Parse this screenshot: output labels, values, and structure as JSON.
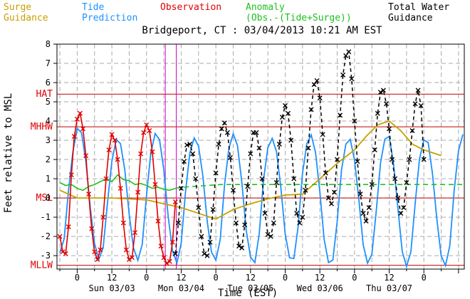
{
  "legend": {
    "surge": {
      "line1": "Surge",
      "line2": "Guidance",
      "color": "#c8a000"
    },
    "tide": {
      "line1": "Tide",
      "line2": "Prediction",
      "color": "#1e90ff"
    },
    "observation": {
      "line1": "Observation",
      "color": "#e00000"
    },
    "anomaly": {
      "line1": "Anomaly",
      "line2": "(Obs.-(Tide+Surge))",
      "color": "#20c020"
    },
    "total": {
      "line1": "Total Water",
      "line2": "Guidance",
      "color": "#000000"
    }
  },
  "chart_data": {
    "type": "line",
    "title": "Bridgeport, CT : 03/04/2013 10:21 AM EST",
    "xlabel": "Time (EST)",
    "ylabel": "Feet relative to MSL",
    "ylim": [
      -3.7,
      8
    ],
    "xlim_hours": [
      -7,
      134
    ],
    "x_unit": "hours after 00:00 EST 03/03/2013",
    "yticks": [
      -3,
      -2,
      -1,
      0,
      1,
      2,
      3,
      4,
      5,
      6,
      7,
      8
    ],
    "xticks": [
      {
        "x": 0,
        "label": "0"
      },
      {
        "x": 12,
        "label": "12"
      },
      {
        "x": 24,
        "label": "0"
      },
      {
        "x": 36,
        "label": "12"
      },
      {
        "x": 48,
        "label": "0"
      },
      {
        "x": 60,
        "label": "12"
      },
      {
        "x": 72,
        "label": "0"
      },
      {
        "x": 84,
        "label": "12"
      },
      {
        "x": 96,
        "label": "0"
      },
      {
        "x": 108,
        "label": "12"
      },
      {
        "x": 120,
        "label": "0"
      }
    ],
    "day_labels": [
      {
        "x": 12,
        "label": "Sun 03/03"
      },
      {
        "x": 36,
        "label": "Mon 03/04"
      },
      {
        "x": 60,
        "label": "Tue 03/05"
      },
      {
        "x": 84,
        "label": "Wed 03/06"
      },
      {
        "x": 108,
        "label": "Thu 03/07"
      }
    ],
    "reference_lines": [
      {
        "name": "HAT",
        "value": 5.4,
        "color": "#c00000"
      },
      {
        "name": "MHHW",
        "value": 3.7,
        "color": "#c00000"
      },
      {
        "name": "MSL",
        "value": 0.0,
        "color": "#c00000"
      },
      {
        "name": "MLLW",
        "value": -3.5,
        "color": "#c00000"
      }
    ],
    "vertical_markers": [
      {
        "x": 30.5,
        "color": "#cc00cc"
      },
      {
        "x": 34.3,
        "color": "#cc00cc"
      }
    ],
    "grid": true,
    "series": [
      {
        "name": "Tide Prediction",
        "color": "#1e90ff",
        "style": "solid",
        "x": [
          -6.0,
          -4.5,
          -3.0,
          -1.5,
          0.0,
          1.5,
          3.0,
          4.5,
          6.0,
          7.5,
          9.0,
          10.5,
          12.0,
          13.5,
          15.0,
          16.5,
          18.0,
          19.5,
          21.0,
          22.5,
          24.0,
          25.5,
          27.0,
          28.5,
          30.0,
          31.5,
          33.0,
          34.5,
          36.0,
          37.5,
          39.0,
          40.5,
          42.0,
          43.5,
          45.0,
          46.5,
          48.0,
          49.5,
          51.0,
          52.5,
          54.0,
          55.5,
          57.0,
          58.5,
          60.0,
          61.5,
          63.0,
          64.5,
          66.0,
          67.5,
          69.0,
          70.5,
          72.0,
          73.5,
          75.0,
          76.5,
          78.0,
          79.5,
          81.0,
          82.5,
          84.0,
          85.5,
          87.0,
          88.5,
          90.0,
          91.5,
          93.0,
          94.5,
          96.0,
          97.5,
          99.0,
          100.5,
          102.0,
          103.5,
          105.0,
          106.5,
          108.0,
          109.5,
          111.0,
          112.5,
          114.0,
          115.5,
          117.0,
          118.5,
          120.0,
          121.5,
          123.0,
          124.5,
          126.0,
          127.5,
          129.0,
          130.5,
          132.0,
          133.5
        ],
        "y": [
          -2.85,
          -2.12,
          0.4,
          2.38,
          3.62,
          3.39,
          1.9,
          -0.47,
          -2.37,
          -3.19,
          -2.59,
          -0.22,
          1.91,
          3.05,
          2.82,
          1.45,
          -0.85,
          -2.61,
          -3.25,
          -2.42,
          0.16,
          2.34,
          3.35,
          3.03,
          1.45,
          -0.97,
          -2.76,
          -3.38,
          -2.37,
          0.31,
          2.34,
          3.12,
          2.7,
          1.14,
          -1.22,
          -2.82,
          -3.23,
          -2.18,
          0.67,
          2.58,
          3.34,
          2.72,
          0.81,
          -1.67,
          -3.08,
          -3.36,
          -1.87,
          0.95,
          2.61,
          3.1,
          2.41,
          0.54,
          -1.88,
          -3.11,
          -3.15,
          -1.47,
          1.29,
          2.82,
          3.28,
          2.37,
          0.3,
          -2.16,
          -3.36,
          -3.23,
          -1.22,
          1.47,
          2.8,
          3.05,
          1.98,
          -0.08,
          -2.43,
          -3.39,
          -2.94,
          -0.7,
          1.83,
          3.06,
          3.2,
          1.79,
          -0.51,
          -2.78,
          -3.56,
          -2.8,
          -0.29,
          2.04,
          3.02,
          2.88,
          1.24,
          -1.12,
          -3.01,
          -3.52,
          -2.47,
          0.4,
          2.46,
          3.31
        ]
      },
      {
        "name": "Observation",
        "color": "#e00000",
        "style": "solid-x",
        "x": [
          -6.0,
          -5.0,
          -4.0,
          -3.0,
          -2.0,
          -1.0,
          0.0,
          1.0,
          2.0,
          3.0,
          4.0,
          5.0,
          6.0,
          7.0,
          8.0,
          9.0,
          10.0,
          11.0,
          12.0,
          13.0,
          14.0,
          15.0,
          16.0,
          17.0,
          18.0,
          19.0,
          20.0,
          21.0,
          22.0,
          23.0,
          24.0,
          25.0,
          26.0,
          27.0,
          28.0,
          29.0,
          30.0,
          31.0,
          32.0,
          33.0,
          34.0
        ],
        "y": [
          -2.0,
          -2.8,
          -2.9,
          -1.5,
          1.2,
          3.2,
          4.1,
          4.4,
          3.6,
          2.2,
          0.2,
          -1.6,
          -2.8,
          -3.2,
          -2.7,
          -1.0,
          1.0,
          2.5,
          3.3,
          3.0,
          2.0,
          0.5,
          -1.3,
          -2.7,
          -3.2,
          -3.1,
          -1.8,
          0.3,
          2.3,
          3.4,
          3.8,
          3.5,
          2.4,
          0.7,
          -1.2,
          -2.5,
          -3.1,
          -3.4,
          -3.3,
          -2.3,
          -0.2
        ]
      },
      {
        "name": "Anomaly",
        "color": "#20c020",
        "style": "solid-to-dashed",
        "dash_from": 34.5,
        "x": [
          -6.0,
          -4.0,
          -2.0,
          0.0,
          2.0,
          4.0,
          6.0,
          8.0,
          10.0,
          12.0,
          14.0,
          16.0,
          18.0,
          20.0,
          22.0,
          24.0,
          26.0,
          28.0,
          30.0,
          32.0,
          34.0,
          36.0,
          40.0,
          45.0,
          50.0,
          60.0,
          70.0,
          80.0,
          90.0,
          100.0,
          110.0,
          120.0,
          130.0,
          134.0
        ],
        "y": [
          0.8,
          0.65,
          0.7,
          0.5,
          0.4,
          0.6,
          0.7,
          0.85,
          1.0,
          0.85,
          1.2,
          0.95,
          0.9,
          0.7,
          0.75,
          0.65,
          0.5,
          0.55,
          0.45,
          0.4,
          0.5,
          0.55,
          0.6,
          0.65,
          0.7,
          0.7,
          0.7,
          0.7,
          0.7,
          0.7,
          0.7,
          0.7,
          0.7,
          0.7
        ]
      },
      {
        "name": "Surge Guidance",
        "color": "#c8a000",
        "style": "solid",
        "x": [
          -6.0,
          0.0,
          6.0,
          12.0,
          18.0,
          24.0,
          30.0,
          36.0,
          42.0,
          48.0,
          54.0,
          60.0,
          66.0,
          72.0,
          78.0,
          84.0,
          90.0,
          96.0,
          100.0,
          104.0,
          108.0,
          112.0,
          116.0,
          120.0,
          124.0,
          126.0
        ],
        "y": [
          0.4,
          0.0,
          0.0,
          0.0,
          -0.05,
          -0.1,
          -0.3,
          -0.5,
          -0.8,
          -1.1,
          -0.6,
          -0.3,
          -0.05,
          0.15,
          0.2,
          1.0,
          1.8,
          2.5,
          3.2,
          3.8,
          4.0,
          3.5,
          2.8,
          2.5,
          2.3,
          2.2
        ]
      },
      {
        "name": "Total Water Guidance",
        "color": "#000000",
        "style": "dashed-x",
        "x": [
          34.0,
          35.0,
          36.0,
          37.0,
          38.0,
          39.0,
          40.0,
          41.0,
          42.0,
          43.0,
          44.0,
          45.0,
          46.0,
          47.0,
          48.0,
          49.0,
          50.0,
          51.0,
          52.0,
          53.0,
          54.0,
          55.0,
          56.0,
          57.0,
          58.0,
          59.0,
          60.0,
          61.0,
          62.0,
          63.0,
          64.0,
          65.0,
          66.0,
          67.0,
          68.0,
          69.0,
          70.0,
          71.0,
          72.0,
          73.0,
          74.0,
          75.0,
          76.0,
          77.0,
          78.0,
          79.0,
          80.0,
          81.0,
          82.0,
          83.0,
          84.0,
          85.0,
          86.0,
          87.0,
          88.0,
          89.0,
          90.0,
          91.0,
          92.0,
          93.0,
          94.0,
          95.0,
          96.0,
          97.0,
          98.0,
          99.0,
          100.0,
          101.0,
          102.0,
          103.0,
          104.0,
          105.0,
          106.0,
          107.0,
          108.0,
          109.0,
          110.0,
          111.0,
          112.0,
          113.0,
          114.0,
          115.0,
          116.0,
          117.0,
          118.0,
          119.0,
          120.0
        ],
        "y": [
          -2.9,
          -1.3,
          0.5,
          1.9,
          2.75,
          2.8,
          2.3,
          1.0,
          -0.5,
          -2.0,
          -2.9,
          -3.0,
          -2.3,
          -0.6,
          1.3,
          2.8,
          3.6,
          3.9,
          3.4,
          2.1,
          0.4,
          -1.3,
          -2.5,
          -2.6,
          -1.4,
          0.6,
          2.3,
          3.4,
          3.4,
          2.6,
          1.0,
          -0.8,
          -1.9,
          -2.0,
          -1.3,
          0.8,
          2.8,
          4.2,
          4.8,
          4.4,
          3.0,
          1.0,
          -0.8,
          -1.3,
          -1.0,
          0.4,
          2.6,
          4.6,
          5.9,
          6.1,
          5.2,
          3.3,
          1.3,
          0.0,
          -0.3,
          0.3,
          2.0,
          4.3,
          6.4,
          7.4,
          7.6,
          6.2,
          4.0,
          1.9,
          0.2,
          -0.8,
          -1.2,
          -0.5,
          0.7,
          2.5,
          4.4,
          5.5,
          5.6,
          4.9,
          3.6,
          2.0,
          1.0,
          0.0,
          -0.8,
          -0.5,
          0.8,
          2.0,
          3.5,
          4.9,
          5.6,
          4.8,
          2.0
        ]
      }
    ]
  }
}
